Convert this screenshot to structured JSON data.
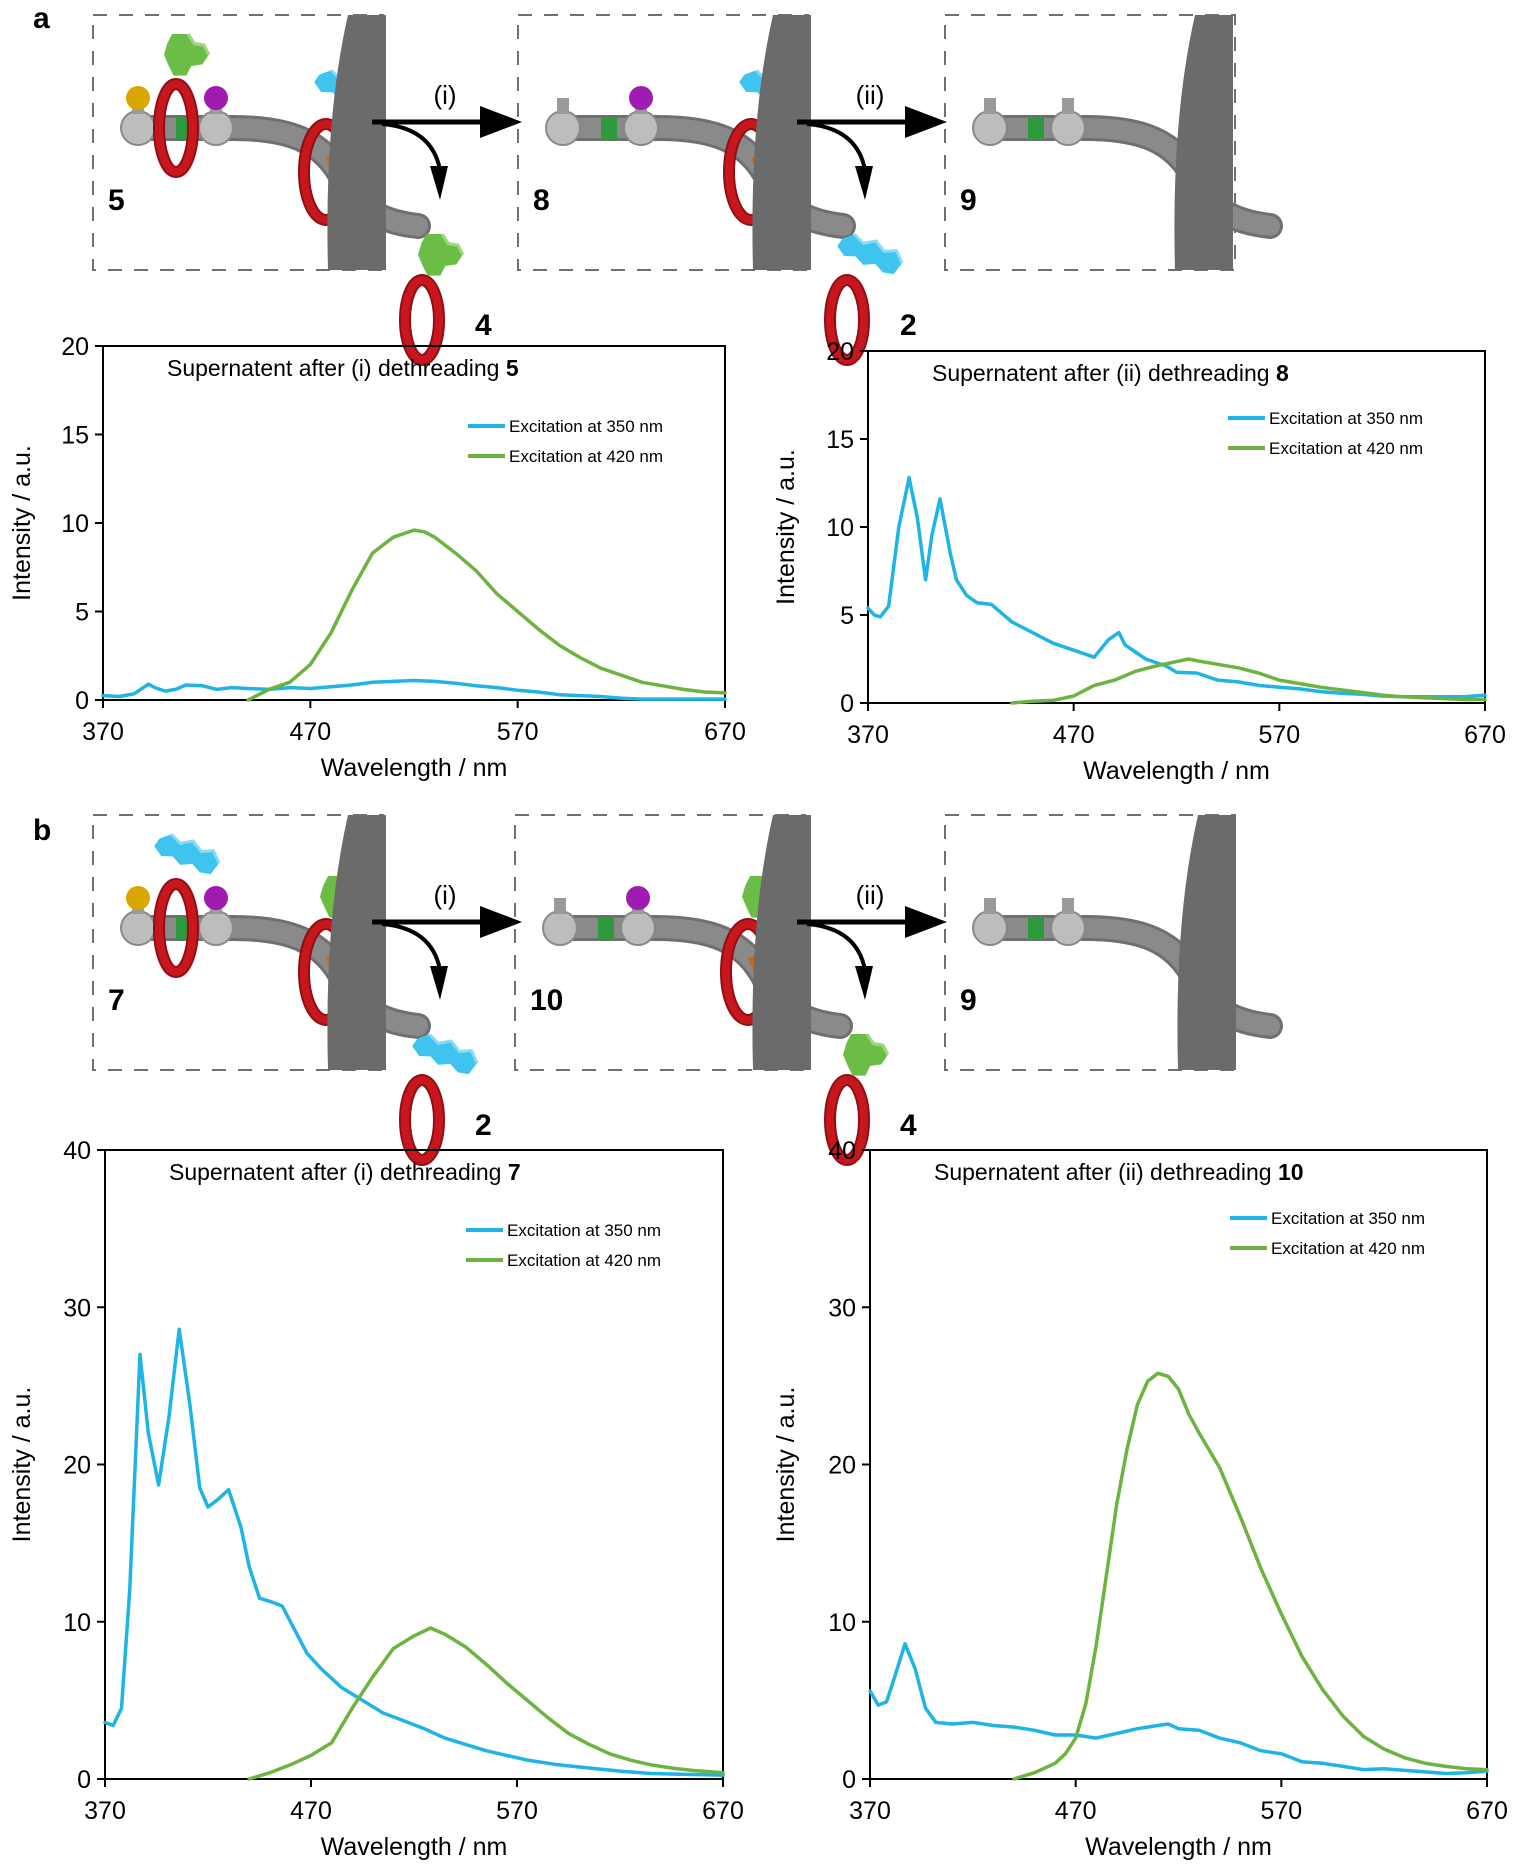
{
  "figure": {
    "panels": [
      {
        "label": "a",
        "scheme": {
          "structures": [
            {
              "id": "5",
              "label": "5",
              "rings": [
                {
                  "stopper": "green-trefoil",
                  "position": "left"
                },
                {
                  "stopper": "blue-zigzag",
                  "position": "right"
                }
              ],
              "gates": [
                "yellow",
                "purple"
              ]
            },
            {
              "id": "8",
              "label": "8",
              "rings": [
                {
                  "stopper": "blue-zigzag",
                  "position": "right"
                }
              ],
              "gates": [
                "purple"
              ]
            },
            {
              "id": "9",
              "label": "9",
              "rings": [],
              "gates": []
            }
          ],
          "steps": [
            {
              "label": "(i)",
              "released": {
                "label": "4",
                "stopper": "green-trefoil"
              }
            },
            {
              "label": "(ii)",
              "released": {
                "label": "2",
                "stopper": "blue-zigzag"
              }
            }
          ]
        }
      },
      {
        "label": "b",
        "scheme": {
          "structures": [
            {
              "id": "7",
              "label": "7",
              "rings": [
                {
                  "stopper": "blue-zigzag",
                  "position": "left"
                },
                {
                  "stopper": "green-trefoil",
                  "position": "right"
                }
              ],
              "gates": [
                "yellow",
                "purple"
              ]
            },
            {
              "id": "10",
              "label": "10",
              "rings": [
                {
                  "stopper": "green-trefoil",
                  "position": "right"
                }
              ],
              "gates": [
                "purple"
              ]
            },
            {
              "id": "9",
              "label": "9",
              "rings": [],
              "gates": []
            }
          ],
          "steps": [
            {
              "label": "(i)",
              "released": {
                "label": "2",
                "stopper": "blue-zigzag"
              }
            },
            {
              "label": "(ii)",
              "released": {
                "label": "4",
                "stopper": "green-trefoil"
              }
            }
          ]
        }
      }
    ],
    "colors": {
      "ring": "#c8161d",
      "axle": "#8a8a8a",
      "wall": "#6b6b6b",
      "green_stopper": "#6cbd45",
      "blue_stopper": "#3fc3ef",
      "gate_yellow": "#d9a800",
      "gate_purple": "#a01cb0",
      "green_band": "#2e9a3e",
      "orange_band": "#c8661a",
      "series_350": "#1fb3e6",
      "series_420": "#6cb33f"
    }
  },
  "chart_data": [
    {
      "id": "a-left",
      "type": "line",
      "title_prefix": "Supernatent after (i) dethreading ",
      "title_bold": "5",
      "xlabel": "Wavelength / nm",
      "ylabel": "Intensity / a.u.",
      "xlim": [
        370,
        670
      ],
      "ylim": [
        0,
        20
      ],
      "xticks": [
        370,
        470,
        570,
        670
      ],
      "yticks": [
        0,
        5,
        10,
        15,
        20
      ],
      "grid": false,
      "legend": "top-right",
      "series": [
        {
          "name": "Excitation at 350 nm",
          "color": "#1fb3e6",
          "x": [
            370,
            378,
            385,
            392,
            395,
            400,
            405,
            410,
            418,
            425,
            432,
            440,
            450,
            460,
            470,
            480,
            490,
            500,
            510,
            520,
            530,
            540,
            550,
            560,
            570,
            580,
            590,
            600,
            610,
            620,
            630,
            640,
            650,
            660,
            670
          ],
          "y": [
            0.25,
            0.2,
            0.35,
            0.9,
            0.7,
            0.5,
            0.6,
            0.85,
            0.8,
            0.6,
            0.7,
            0.65,
            0.6,
            0.7,
            0.65,
            0.75,
            0.85,
            1.0,
            1.05,
            1.1,
            1.05,
            0.95,
            0.8,
            0.7,
            0.55,
            0.45,
            0.3,
            0.25,
            0.2,
            0.1,
            0.05,
            0.05,
            0.05,
            0.05,
            0.05
          ]
        },
        {
          "name": "Excitation at 420 nm",
          "color": "#6cb33f",
          "x": [
            440,
            450,
            460,
            470,
            480,
            490,
            500,
            510,
            520,
            525,
            530,
            540,
            550,
            560,
            570,
            580,
            590,
            600,
            610,
            620,
            630,
            640,
            650,
            660,
            670
          ],
          "y": [
            0.0,
            0.6,
            1.0,
            2.0,
            3.8,
            6.2,
            8.3,
            9.2,
            9.6,
            9.5,
            9.2,
            8.3,
            7.3,
            6.0,
            5.0,
            4.0,
            3.1,
            2.4,
            1.8,
            1.4,
            1.0,
            0.8,
            0.6,
            0.45,
            0.4
          ]
        }
      ]
    },
    {
      "id": "a-right",
      "type": "line",
      "title_prefix": "Supernatent after (ii) dethreading ",
      "title_bold": "8",
      "xlabel": "Wavelength / nm",
      "ylabel": "Intensity / a.u.",
      "xlim": [
        370,
        670
      ],
      "ylim": [
        0,
        20
      ],
      "xticks": [
        370,
        470,
        570,
        670
      ],
      "yticks": [
        0,
        5,
        10,
        15,
        20
      ],
      "grid": false,
      "legend": "top-right",
      "series": [
        {
          "name": "Excitation at 350 nm",
          "color": "#1fb3e6",
          "x": [
            370,
            373,
            376,
            380,
            385,
            390,
            394,
            398,
            401,
            405,
            410,
            413,
            418,
            423,
            430,
            440,
            450,
            460,
            470,
            480,
            487,
            492,
            495,
            500,
            505,
            510,
            515,
            520,
            530,
            540,
            550,
            560,
            570,
            580,
            590,
            600,
            610,
            620,
            630,
            640,
            650,
            660,
            670
          ],
          "y": [
            5.4,
            5.0,
            4.9,
            5.5,
            10.0,
            12.8,
            10.5,
            7.0,
            9.5,
            11.6,
            8.5,
            7.0,
            6.1,
            5.7,
            5.6,
            4.6,
            4.0,
            3.4,
            3.0,
            2.6,
            3.6,
            4.0,
            3.3,
            2.9,
            2.5,
            2.3,
            2.1,
            1.75,
            1.7,
            1.3,
            1.2,
            1.0,
            0.9,
            0.8,
            0.65,
            0.55,
            0.5,
            0.4,
            0.35,
            0.35,
            0.35,
            0.35,
            0.45
          ]
        },
        {
          "name": "Excitation at 420 nm",
          "color": "#6cb33f",
          "x": [
            440,
            450,
            460,
            470,
            480,
            490,
            500,
            510,
            520,
            526,
            530,
            540,
            550,
            560,
            570,
            580,
            590,
            600,
            610,
            620,
            630,
            640,
            650,
            660,
            670
          ],
          "y": [
            0.0,
            0.1,
            0.15,
            0.4,
            1.0,
            1.3,
            1.8,
            2.1,
            2.35,
            2.5,
            2.4,
            2.2,
            2.0,
            1.7,
            1.3,
            1.1,
            0.9,
            0.75,
            0.6,
            0.45,
            0.35,
            0.3,
            0.25,
            0.2,
            0.2
          ]
        }
      ]
    },
    {
      "id": "b-left",
      "type": "line",
      "title_prefix": "Supernatent after (i) dethreading ",
      "title_bold": "7",
      "xlabel": "Wavelength / nm",
      "ylabel": "Intensity / a.u.",
      "xlim": [
        370,
        670
      ],
      "ylim": [
        0,
        40
      ],
      "xticks": [
        370,
        470,
        570,
        670
      ],
      "yticks": [
        0,
        10,
        20,
        30,
        40
      ],
      "grid": false,
      "legend": "top-right",
      "series": [
        {
          "name": "Excitation at 350 nm",
          "color": "#1fb3e6",
          "x": [
            370,
            374,
            378,
            382,
            387,
            391,
            396,
            401,
            406,
            411,
            416,
            420,
            425,
            430,
            436,
            440,
            445,
            450,
            456,
            462,
            468,
            475,
            485,
            495,
            505,
            515,
            525,
            535,
            545,
            555,
            565,
            575,
            590,
            605,
            620,
            635,
            650,
            670
          ],
          "y": [
            3.6,
            3.4,
            4.5,
            12.0,
            27.0,
            22.0,
            18.7,
            23.0,
            28.6,
            24.0,
            18.5,
            17.3,
            17.8,
            18.4,
            16.0,
            13.5,
            11.5,
            11.3,
            11.0,
            9.5,
            8.0,
            7.0,
            5.8,
            5.0,
            4.2,
            3.7,
            3.2,
            2.6,
            2.2,
            1.8,
            1.5,
            1.2,
            0.9,
            0.7,
            0.5,
            0.35,
            0.3,
            0.25
          ]
        },
        {
          "name": "Excitation at 420 nm",
          "color": "#6cb33f",
          "x": [
            440,
            450,
            460,
            470,
            480,
            490,
            500,
            510,
            520,
            528,
            535,
            545,
            555,
            565,
            575,
            585,
            595,
            605,
            615,
            625,
            635,
            645,
            655,
            670
          ],
          "y": [
            0.0,
            0.4,
            0.9,
            1.5,
            2.3,
            4.5,
            6.5,
            8.3,
            9.1,
            9.6,
            9.2,
            8.4,
            7.3,
            6.1,
            5.0,
            3.9,
            2.9,
            2.2,
            1.6,
            1.2,
            0.9,
            0.7,
            0.55,
            0.4
          ]
        }
      ]
    },
    {
      "id": "b-right",
      "type": "line",
      "title_prefix": "Supernatent after (ii) dethreading ",
      "title_bold": "10",
      "xlabel": "Wavelength / nm",
      "ylabel": "Intensity / a.u.",
      "xlim": [
        370,
        670
      ],
      "ylim": [
        0,
        40
      ],
      "xticks": [
        370,
        470,
        570,
        670
      ],
      "yticks": [
        0,
        10,
        20,
        30,
        40
      ],
      "grid": false,
      "legend": "top-right",
      "series": [
        {
          "name": "Excitation at 350 nm",
          "color": "#1fb3e6",
          "x": [
            370,
            374,
            378,
            382,
            387,
            392,
            397,
            402,
            410,
            420,
            430,
            440,
            450,
            460,
            470,
            480,
            490,
            500,
            510,
            515,
            520,
            530,
            540,
            550,
            560,
            570,
            580,
            590,
            600,
            610,
            620,
            630,
            640,
            650,
            660,
            670
          ],
          "y": [
            5.6,
            4.7,
            4.9,
            6.5,
            8.6,
            7.0,
            4.5,
            3.6,
            3.5,
            3.6,
            3.4,
            3.3,
            3.1,
            2.8,
            2.8,
            2.6,
            2.9,
            3.2,
            3.4,
            3.5,
            3.2,
            3.1,
            2.6,
            2.3,
            1.8,
            1.6,
            1.1,
            1.0,
            0.8,
            0.6,
            0.65,
            0.55,
            0.45,
            0.35,
            0.4,
            0.5
          ]
        },
        {
          "name": "Excitation at 420 nm",
          "color": "#6cb33f",
          "x": [
            440,
            450,
            460,
            465,
            470,
            475,
            480,
            485,
            490,
            495,
            500,
            505,
            510,
            515,
            520,
            525,
            530,
            540,
            550,
            560,
            570,
            580,
            590,
            600,
            610,
            620,
            630,
            640,
            650,
            660,
            670
          ],
          "y": [
            0.0,
            0.4,
            1.0,
            1.6,
            2.6,
            4.8,
            8.5,
            13.0,
            17.5,
            21.0,
            23.8,
            25.3,
            25.8,
            25.6,
            24.8,
            23.2,
            22.0,
            19.8,
            16.7,
            13.4,
            10.5,
            7.8,
            5.7,
            4.0,
            2.7,
            1.9,
            1.35,
            1.0,
            0.8,
            0.65,
            0.6
          ]
        }
      ]
    }
  ]
}
